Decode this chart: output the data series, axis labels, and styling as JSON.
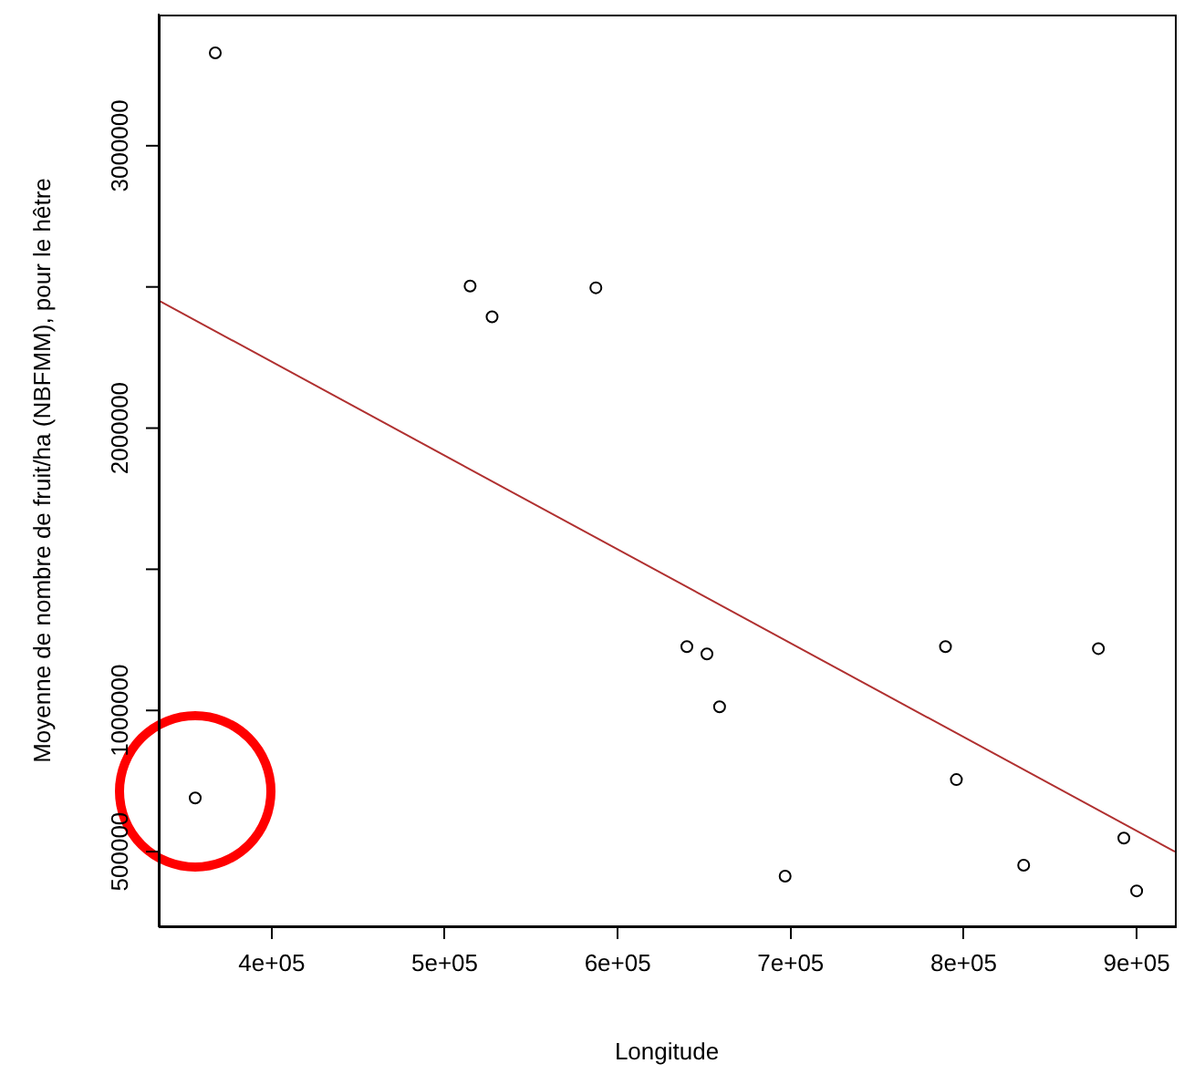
{
  "chart_data": {
    "type": "scatter",
    "xlabel": "Longitude",
    "ylabel": "Moyenne de nombre de fruit/ha (NBFMM), pour le hêtre",
    "xlim": [
      334700,
      922100
    ],
    "ylim": [
      235500,
      3464500
    ],
    "xticks": [
      {
        "value": 400000,
        "label": "4e+05"
      },
      {
        "value": 500000,
        "label": "5e+05"
      },
      {
        "value": 600000,
        "label": "6e+05"
      },
      {
        "value": 700000,
        "label": "7e+05"
      },
      {
        "value": 800000,
        "label": "8e+05"
      },
      {
        "value": 900000,
        "label": "9e+05"
      }
    ],
    "yticks": [
      500000,
      1000000,
      {
        "value": 1500000,
        "label": null
      },
      2000000,
      {
        "value": 2500000,
        "label": null
      },
      3000000
    ],
    "series": [
      {
        "color": "#000000",
        "marker": "circle",
        "x": [
          367400,
          514700,
          527400,
          587400,
          640000,
          651600,
          658900,
          355800,
          696800,
          789500,
          795800,
          834700,
          877900,
          892600,
          900000
        ],
        "values": [
          3329000,
          2503000,
          2394000,
          2497000,
          1226000,
          1200000,
          1013000,
          690000,
          413000,
          1226000,
          755000,
          452000,
          1219000,
          548000,
          361000
        ]
      },
      {
        "type": "line",
        "marker": "none",
        "color": "#b03030",
        "x": [
          334700,
          922100
        ],
        "values": [
          2452000,
          500000
        ]
      }
    ],
    "grid": false,
    "legend": false
  }
}
